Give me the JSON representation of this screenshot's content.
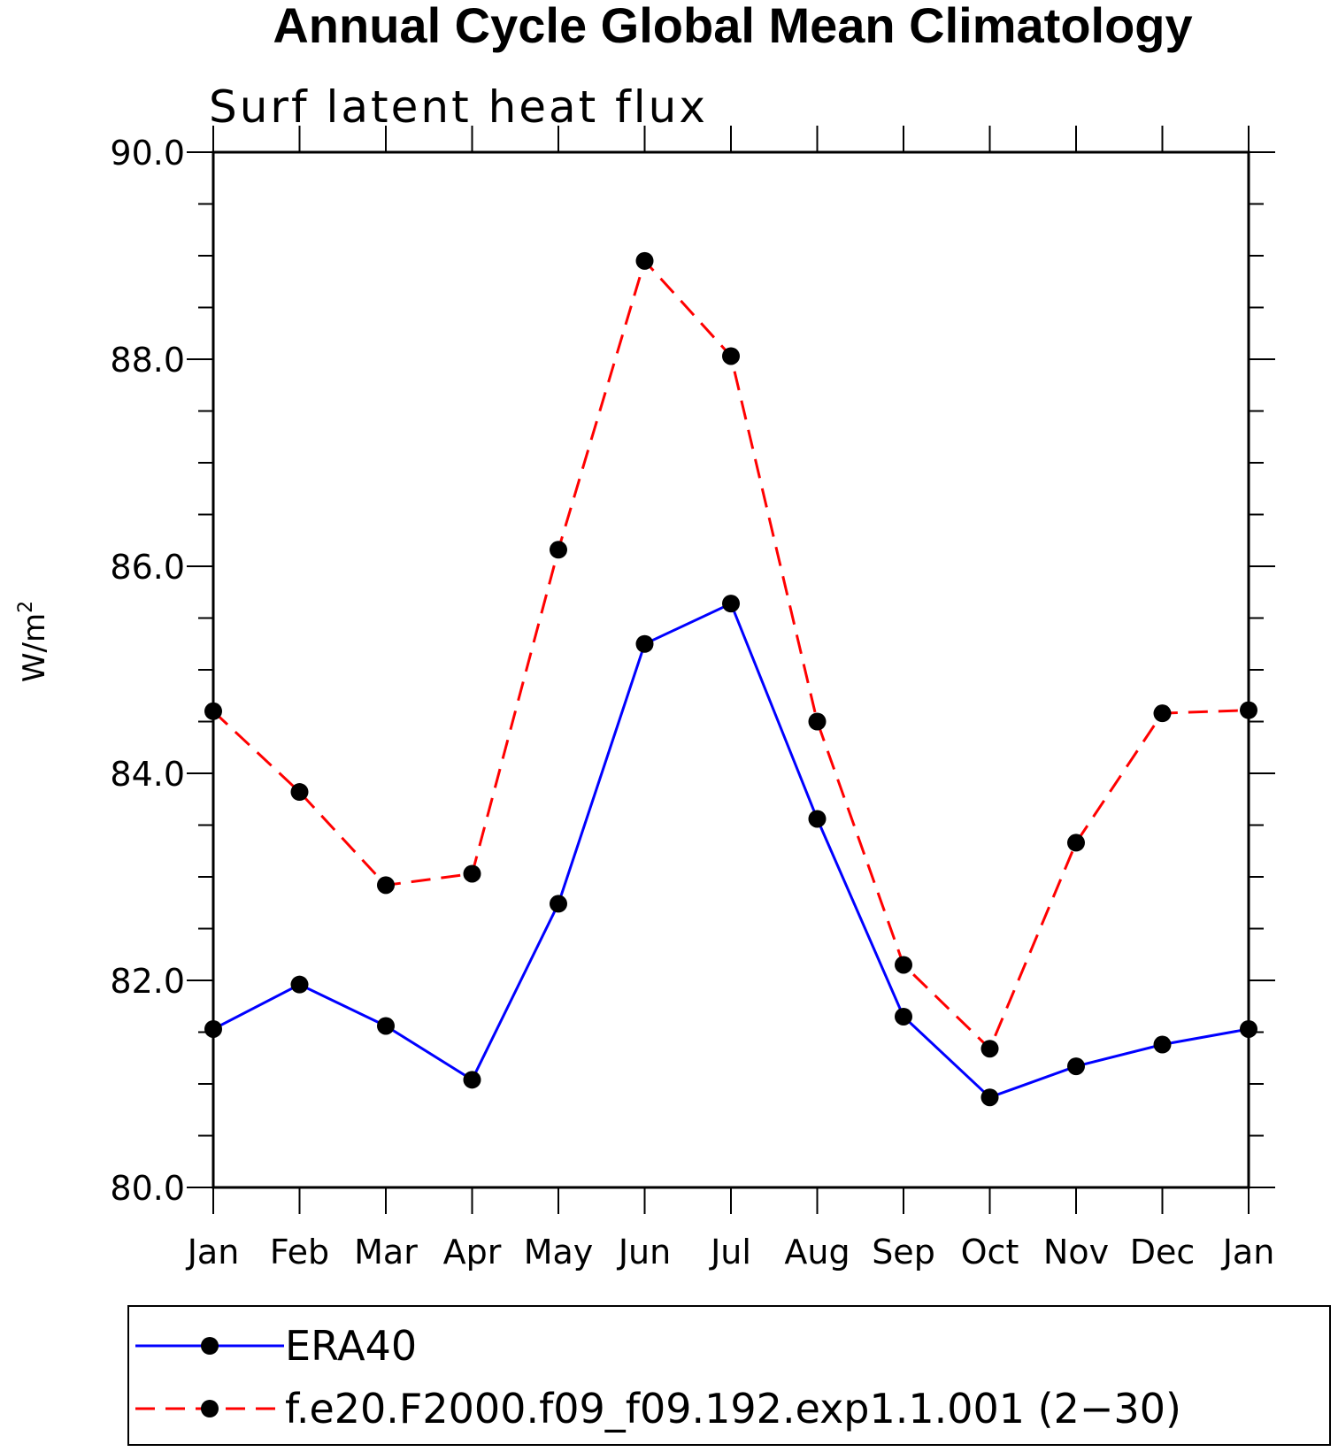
{
  "chart_data": {
    "type": "line",
    "title": "Annual Cycle Global Mean Climatology",
    "subtitle": "Surf latent heat flux",
    "xlabel": "",
    "ylabel": "W/m",
    "ylabel_superscript": "2",
    "categories": [
      "Jan",
      "Feb",
      "Mar",
      "Apr",
      "May",
      "Jun",
      "Jul",
      "Aug",
      "Sep",
      "Oct",
      "Nov",
      "Dec",
      "Jan"
    ],
    "ylim": [
      80.0,
      90.0
    ],
    "yticks": [
      "80.0",
      "82.0",
      "84.0",
      "86.0",
      "88.0",
      "90.0"
    ],
    "grid": false,
    "legend_position": "bottom",
    "series": [
      {
        "name": "ERA40",
        "color": "#0000ff",
        "dash": "solid",
        "values": [
          81.53,
          81.96,
          81.56,
          81.04,
          82.74,
          85.25,
          85.64,
          83.56,
          81.65,
          80.87,
          81.17,
          81.38,
          81.53
        ]
      },
      {
        "name": "f.e20.F2000.f09_f09.192.exp1.1.001 (2−30)",
        "color": "#ff0000",
        "dash": "dashed",
        "values": [
          84.6,
          83.82,
          82.92,
          83.03,
          86.16,
          88.95,
          88.03,
          84.5,
          82.15,
          81.34,
          83.33,
          84.58,
          84.61
        ]
      }
    ]
  }
}
